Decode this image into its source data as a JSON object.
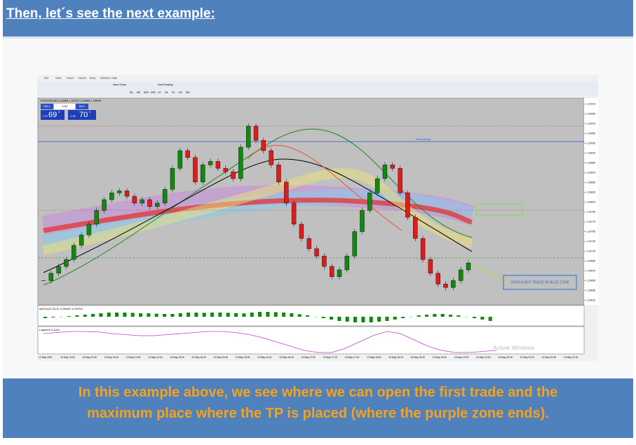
{
  "header": {
    "title": "Then, let´s see the next example:"
  },
  "screenshot": {
    "menu": [
      "File",
      "View",
      "Insert",
      "Charts",
      "Tools",
      "Window",
      "Help"
    ],
    "toolbar": [
      "New Order",
      "AutoTrading"
    ],
    "timeframes": [
      "M1",
      "M5",
      "M15",
      "M30",
      "H1",
      "H4",
      "D1",
      "W1",
      "MN"
    ],
    "symbol_info": "EURUSD,M5 1.20689 1.20703 1.20683 1.20695",
    "trade_panel": {
      "sell": "SELL",
      "lot": "1.00",
      "buy": "BUY",
      "sell_prefix": "1.20",
      "sell_big": "69",
      "sell_small": "5",
      "buy_prefix": "1.20",
      "buy_big": "70",
      "buy_small": "5"
    },
    "line_label": "Pivot actual",
    "annotation": "OPEN A BUY TRADE IN BLUE ZONE",
    "watermark": "Activar Windows",
    "price_chart": {
      "type": "candlestick",
      "up_color": "#0f8a0f",
      "down_color": "#e01b1b",
      "closes": [
        1.20655,
        1.2067,
        1.20684,
        1.20698,
        1.20727,
        1.20748,
        1.2077,
        1.20798,
        1.2082,
        1.20834,
        1.20838,
        1.20827,
        1.20813,
        1.2082,
        1.20806,
        1.20813,
        1.20841,
        1.20884,
        1.2092,
        1.20906,
        1.20856,
        1.20891,
        1.20898,
        1.20884,
        1.20877,
        1.20863,
        1.20927,
        1.2097,
        1.20941,
        1.2092,
        1.20891,
        1.20856,
        1.20813,
        1.2077,
        1.20741,
        1.2072,
        1.20705,
        1.20684,
        1.20663,
        1.20677,
        1.20705,
        1.20755,
        1.20798,
        1.20834,
        1.20863,
        1.20891,
        1.20884,
        1.20834,
        1.20784,
        1.20741,
        1.20698,
        1.2067,
        1.20648,
        1.20641,
        1.20655,
        1.20677,
        1.20691
      ],
      "ylim": [
        1.20607,
        1.2102
      ],
      "yticks": [
        1.20615,
        1.20635,
        1.20655,
        1.20675,
        1.20695,
        1.20715,
        1.20735,
        1.20755,
        1.20775,
        1.20795,
        1.20815,
        1.20835,
        1.20855,
        1.20875,
        1.20895,
        1.20915,
        1.20935,
        1.20955,
        1.20975,
        1.20995,
        1.21015
      ]
    },
    "macd": {
      "type": "histogram",
      "label": "MACD(12,26,9) -0.00059 -0.00703",
      "color": "#0f8a0f",
      "values": [
        -0.0001,
        -5e-05,
        0,
        5e-05,
        0.0001,
        0.00015,
        0.0002,
        0.00025,
        0.0003,
        0.0003,
        0.0003,
        0.00028,
        0.00025,
        0.00025,
        0.00022,
        0.0002,
        0.0002,
        0.00025,
        0.0003,
        0.0003,
        0.00028,
        0.0003,
        0.0003,
        0.00028,
        0.00026,
        0.00024,
        0.0003,
        0.00035,
        0.00035,
        0.00033,
        0.0003,
        0.00025,
        0.00018,
        0.0001,
        0,
        -0.0001,
        -0.0002,
        -0.0003,
        -0.00035,
        -0.0004,
        -0.0004,
        -0.0004,
        -0.00035,
        -0.0003,
        -0.0002,
        -0.0001,
        0,
        0.0001,
        0.00015,
        0.0002,
        0.0002,
        0.00015,
        0.0001,
        0,
        -0.0001,
        -0.0002,
        -0.0003
      ],
      "ylim": [
        -0.0006,
        0.0006
      ]
    },
    "laguerre": {
      "type": "line",
      "label": "Laguerre 0.1041",
      "color": "#c040c0",
      "values": [
        0.9,
        0.95,
        1,
        1,
        0.98,
        0.9,
        0.85,
        0.8,
        0.8,
        0.85,
        0.9,
        0.95,
        1,
        1,
        0.95,
        0.85,
        0.7,
        0.5,
        0.3,
        0.1,
        0,
        0,
        0.2,
        0.5,
        0.8,
        1,
        0.9,
        0.6,
        0.3,
        0.1,
        0,
        0,
        0.05,
        0.1
      ],
      "ylim": [
        0,
        1
      ]
    },
    "time_labels": [
      "13 May 2021",
      "13 May 13:00",
      "13 May 13:40",
      "13 May 14:00",
      "13 May 14:20",
      "13 May 14:40",
      "13 May 15:00",
      "13 May 15:20",
      "13 May 15:40",
      "13 May 16:00",
      "13 May 16:20",
      "13 May 16:40",
      "13 May 17:00",
      "13 May 17:20",
      "13 May 17:40",
      "13 May 18:00",
      "13 May 18:20",
      "13 May 18:40",
      "13 May 19:00",
      "13 May 19:20",
      "13 May 19:40",
      "13 May 20:00",
      "13 May 20:20",
      "13 May 20:40",
      "13 May 21:00"
    ]
  },
  "caption": {
    "lines": [
      "In this example above, we see where we can open the first trade and the",
      "maximum place where the TP is placed (where the purple zone ends)."
    ]
  }
}
